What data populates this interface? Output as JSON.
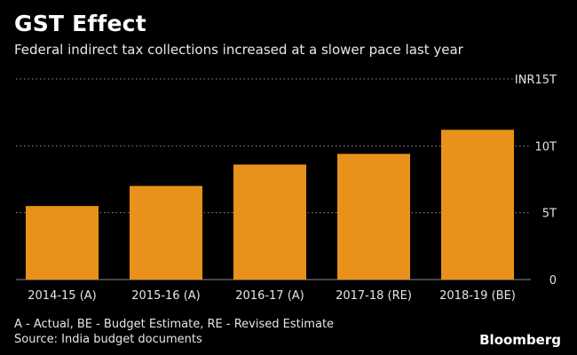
{
  "header": {
    "title": "GST Effect",
    "subtitle": "Federal indirect tax collections increased at a slower pace last year"
  },
  "chart_data": {
    "type": "bar",
    "categories": [
      "2014-15 (A)",
      "2015-16 (A)",
      "2016-17 (A)",
      "2017-18 (RE)",
      "2018-19 (BE)"
    ],
    "values": [
      5.5,
      7.0,
      8.6,
      9.4,
      11.2
    ],
    "ylim": [
      0,
      15
    ],
    "yticks": [
      {
        "value": 0,
        "label": "0"
      },
      {
        "value": 5,
        "label": "5T"
      },
      {
        "value": 10,
        "label": "10T"
      },
      {
        "value": 15,
        "label": "INR15T"
      }
    ],
    "grid": true,
    "bar_color": "#e8921c",
    "grid_color": "#8a8a8a"
  },
  "footer": {
    "note": "A - Actual, BE - Budget Estimate, RE - Revised Estimate",
    "source": "Source: India budget documents",
    "brand": "Bloomberg"
  }
}
